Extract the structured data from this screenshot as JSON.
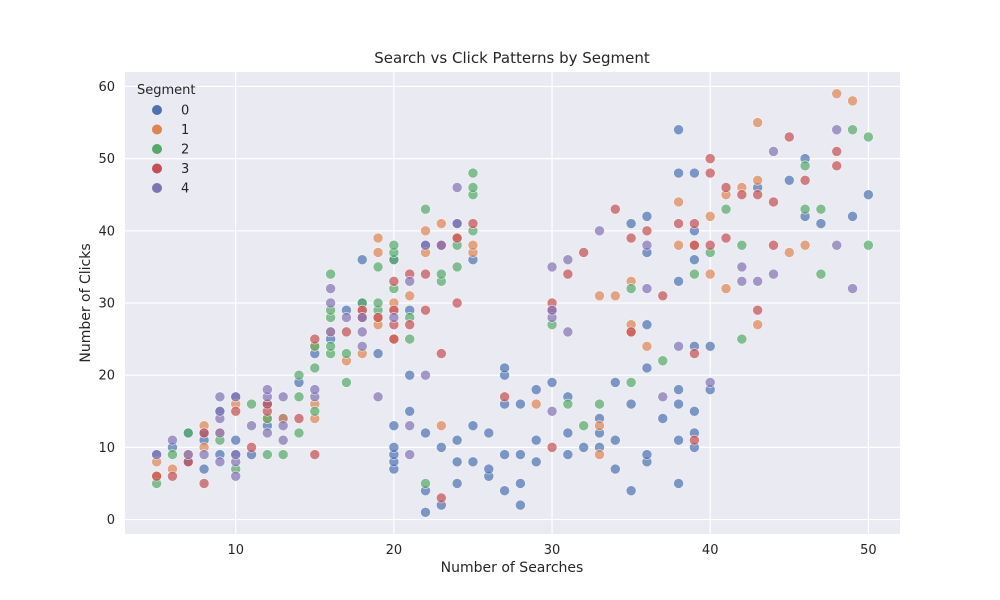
{
  "chart_data": {
    "type": "scatter",
    "title": "Search vs Click Patterns by Segment",
    "xlabel": "Number of Searches",
    "ylabel": "Number of Clicks",
    "xlim": [
      3,
      52
    ],
    "ylim": [
      -2,
      62
    ],
    "xticks": [
      10,
      20,
      30,
      40,
      50
    ],
    "yticks": [
      0,
      10,
      20,
      30,
      40,
      50,
      60
    ],
    "grid": true,
    "legend": {
      "title": "Segment",
      "position": "top-left"
    },
    "series": [
      {
        "name": "0",
        "color": "#4c72b0",
        "points": [
          [
            5,
            9
          ],
          [
            6,
            10
          ],
          [
            7,
            12
          ],
          [
            7,
            8
          ],
          [
            8,
            11
          ],
          [
            8,
            7
          ],
          [
            8,
            12
          ],
          [
            9,
            15
          ],
          [
            9,
            9
          ],
          [
            10,
            9
          ],
          [
            10,
            17
          ],
          [
            10,
            11
          ],
          [
            11,
            9
          ],
          [
            12,
            16
          ],
          [
            12,
            13
          ],
          [
            13,
            14
          ],
          [
            14,
            19
          ],
          [
            15,
            23
          ],
          [
            16,
            25
          ],
          [
            17,
            29
          ],
          [
            18,
            30
          ],
          [
            18,
            36
          ],
          [
            19,
            23
          ],
          [
            20,
            7
          ],
          [
            20,
            8
          ],
          [
            20,
            9
          ],
          [
            20,
            10
          ],
          [
            20,
            13
          ],
          [
            20,
            36
          ],
          [
            21,
            15
          ],
          [
            21,
            20
          ],
          [
            21,
            29
          ],
          [
            22,
            1
          ],
          [
            22,
            4
          ],
          [
            22,
            12
          ],
          [
            22,
            38
          ],
          [
            23,
            2
          ],
          [
            23,
            10
          ],
          [
            24,
            5
          ],
          [
            24,
            8
          ],
          [
            24,
            11
          ],
          [
            24,
            41
          ],
          [
            25,
            8
          ],
          [
            25,
            13
          ],
          [
            25,
            36
          ],
          [
            26,
            6
          ],
          [
            26,
            7
          ],
          [
            26,
            12
          ],
          [
            27,
            4
          ],
          [
            27,
            9
          ],
          [
            27,
            16
          ],
          [
            27,
            20
          ],
          [
            27,
            21
          ],
          [
            28,
            2
          ],
          [
            28,
            5
          ],
          [
            28,
            9
          ],
          [
            28,
            16
          ],
          [
            29,
            8
          ],
          [
            29,
            11
          ],
          [
            29,
            18
          ],
          [
            30,
            19
          ],
          [
            31,
            9
          ],
          [
            31,
            12
          ],
          [
            31,
            17
          ],
          [
            32,
            10
          ],
          [
            33,
            10
          ],
          [
            33,
            12
          ],
          [
            33,
            14
          ],
          [
            34,
            7
          ],
          [
            34,
            11
          ],
          [
            34,
            19
          ],
          [
            35,
            4
          ],
          [
            35,
            16
          ],
          [
            35,
            41
          ],
          [
            36,
            8
          ],
          [
            36,
            9
          ],
          [
            36,
            21
          ],
          [
            36,
            27
          ],
          [
            36,
            37
          ],
          [
            36,
            42
          ],
          [
            37,
            14
          ],
          [
            38,
            5
          ],
          [
            38,
            11
          ],
          [
            38,
            16
          ],
          [
            38,
            18
          ],
          [
            38,
            33
          ],
          [
            38,
            48
          ],
          [
            38,
            54
          ],
          [
            39,
            10
          ],
          [
            39,
            12
          ],
          [
            39,
            15
          ],
          [
            39,
            24
          ],
          [
            39,
            36
          ],
          [
            39,
            40
          ],
          [
            39,
            48
          ],
          [
            40,
            18
          ],
          [
            40,
            24
          ],
          [
            43,
            46
          ],
          [
            45,
            47
          ],
          [
            46,
            42
          ],
          [
            46,
            50
          ],
          [
            47,
            41
          ],
          [
            49,
            42
          ],
          [
            50,
            45
          ]
        ]
      },
      {
        "name": "1",
        "color": "#dd8452",
        "points": [
          [
            5,
            6
          ],
          [
            5,
            8
          ],
          [
            6,
            7
          ],
          [
            7,
            9
          ],
          [
            8,
            10
          ],
          [
            8,
            13
          ],
          [
            9,
            12
          ],
          [
            10,
            16
          ],
          [
            12,
            14
          ],
          [
            13,
            14
          ],
          [
            15,
            14
          ],
          [
            15,
            16
          ],
          [
            15,
            24
          ],
          [
            16,
            26
          ],
          [
            17,
            22
          ],
          [
            18,
            23
          ],
          [
            18,
            29
          ],
          [
            19,
            27
          ],
          [
            19,
            28
          ],
          [
            19,
            37
          ],
          [
            19,
            39
          ],
          [
            20,
            25
          ],
          [
            20,
            29
          ],
          [
            20,
            30
          ],
          [
            21,
            31
          ],
          [
            22,
            37
          ],
          [
            22,
            40
          ],
          [
            23,
            13
          ],
          [
            23,
            41
          ],
          [
            24,
            39
          ],
          [
            25,
            37
          ],
          [
            25,
            38
          ],
          [
            29,
            16
          ],
          [
            33,
            9
          ],
          [
            33,
            13
          ],
          [
            33,
            31
          ],
          [
            34,
            31
          ],
          [
            35,
            26
          ],
          [
            35,
            27
          ],
          [
            35,
            33
          ],
          [
            36,
            24
          ],
          [
            38,
            38
          ],
          [
            38,
            44
          ],
          [
            39,
            38
          ],
          [
            40,
            34
          ],
          [
            40,
            42
          ],
          [
            41,
            32
          ],
          [
            41,
            45
          ],
          [
            42,
            46
          ],
          [
            43,
            27
          ],
          [
            43,
            47
          ],
          [
            43,
            55
          ],
          [
            45,
            37
          ],
          [
            46,
            38
          ],
          [
            48,
            59
          ],
          [
            49,
            58
          ]
        ]
      },
      {
        "name": "2",
        "color": "#55a868",
        "points": [
          [
            5,
            5
          ],
          [
            6,
            9
          ],
          [
            7,
            12
          ],
          [
            9,
            11
          ],
          [
            10,
            7
          ],
          [
            11,
            16
          ],
          [
            12,
            9
          ],
          [
            12,
            14
          ],
          [
            13,
            9
          ],
          [
            14,
            12
          ],
          [
            14,
            17
          ],
          [
            14,
            20
          ],
          [
            15,
            15
          ],
          [
            15,
            21
          ],
          [
            15,
            24
          ],
          [
            16,
            23
          ],
          [
            16,
            24
          ],
          [
            16,
            28
          ],
          [
            16,
            29
          ],
          [
            16,
            34
          ],
          [
            17,
            19
          ],
          [
            17,
            23
          ],
          [
            18,
            30
          ],
          [
            19,
            29
          ],
          [
            19,
            30
          ],
          [
            19,
            35
          ],
          [
            20,
            32
          ],
          [
            20,
            36
          ],
          [
            20,
            37
          ],
          [
            20,
            38
          ],
          [
            21,
            25
          ],
          [
            21,
            28
          ],
          [
            22,
            5
          ],
          [
            22,
            43
          ],
          [
            23,
            33
          ],
          [
            23,
            34
          ],
          [
            24,
            35
          ],
          [
            24,
            38
          ],
          [
            25,
            40
          ],
          [
            25,
            45
          ],
          [
            25,
            46
          ],
          [
            25,
            48
          ],
          [
            30,
            27
          ],
          [
            31,
            16
          ],
          [
            32,
            13
          ],
          [
            33,
            16
          ],
          [
            35,
            19
          ],
          [
            35,
            32
          ],
          [
            37,
            22
          ],
          [
            39,
            34
          ],
          [
            40,
            37
          ],
          [
            41,
            43
          ],
          [
            42,
            25
          ],
          [
            42,
            38
          ],
          [
            46,
            43
          ],
          [
            46,
            49
          ],
          [
            47,
            34
          ],
          [
            47,
            43
          ],
          [
            49,
            54
          ],
          [
            50,
            38
          ],
          [
            50,
            53
          ]
        ]
      },
      {
        "name": "3",
        "color": "#c44e52",
        "points": [
          [
            5,
            6
          ],
          [
            6,
            6
          ],
          [
            7,
            8
          ],
          [
            8,
            5
          ],
          [
            8,
            12
          ],
          [
            10,
            15
          ],
          [
            11,
            10
          ],
          [
            12,
            15
          ],
          [
            12,
            16
          ],
          [
            14,
            14
          ],
          [
            15,
            9
          ],
          [
            15,
            25
          ],
          [
            17,
            26
          ],
          [
            18,
            28
          ],
          [
            18,
            29
          ],
          [
            19,
            28
          ],
          [
            20,
            25
          ],
          [
            20,
            27
          ],
          [
            20,
            29
          ],
          [
            20,
            33
          ],
          [
            21,
            27
          ],
          [
            21,
            34
          ],
          [
            22,
            29
          ],
          [
            22,
            34
          ],
          [
            23,
            3
          ],
          [
            23,
            23
          ],
          [
            23,
            38
          ],
          [
            24,
            30
          ],
          [
            24,
            39
          ],
          [
            25,
            41
          ],
          [
            27,
            17
          ],
          [
            30,
            10
          ],
          [
            30,
            29
          ],
          [
            30,
            30
          ],
          [
            31,
            34
          ],
          [
            32,
            37
          ],
          [
            34,
            43
          ],
          [
            35,
            26
          ],
          [
            35,
            39
          ],
          [
            36,
            40
          ],
          [
            37,
            31
          ],
          [
            38,
            41
          ],
          [
            39,
            11
          ],
          [
            39,
            23
          ],
          [
            39,
            38
          ],
          [
            39,
            41
          ],
          [
            40,
            38
          ],
          [
            40,
            48
          ],
          [
            40,
            50
          ],
          [
            41,
            39
          ],
          [
            41,
            46
          ],
          [
            42,
            45
          ],
          [
            43,
            29
          ],
          [
            43,
            45
          ],
          [
            44,
            38
          ],
          [
            44,
            44
          ],
          [
            45,
            53
          ],
          [
            46,
            47
          ],
          [
            48,
            49
          ],
          [
            48,
            51
          ]
        ]
      },
      {
        "name": "4",
        "color": "#8172b3",
        "points": [
          [
            5,
            9
          ],
          [
            6,
            11
          ],
          [
            7,
            9
          ],
          [
            8,
            9
          ],
          [
            9,
            8
          ],
          [
            9,
            12
          ],
          [
            9,
            14
          ],
          [
            9,
            15
          ],
          [
            9,
            17
          ],
          [
            10,
            6
          ],
          [
            10,
            8
          ],
          [
            10,
            9
          ],
          [
            10,
            17
          ],
          [
            11,
            13
          ],
          [
            12,
            12
          ],
          [
            12,
            17
          ],
          [
            12,
            18
          ],
          [
            13,
            11
          ],
          [
            13,
            13
          ],
          [
            13,
            17
          ],
          [
            15,
            17
          ],
          [
            15,
            18
          ],
          [
            16,
            26
          ],
          [
            16,
            30
          ],
          [
            16,
            32
          ],
          [
            17,
            28
          ],
          [
            18,
            24
          ],
          [
            18,
            26
          ],
          [
            18,
            28
          ],
          [
            19,
            17
          ],
          [
            20,
            28
          ],
          [
            21,
            9
          ],
          [
            21,
            13
          ],
          [
            21,
            33
          ],
          [
            22,
            20
          ],
          [
            22,
            38
          ],
          [
            23,
            38
          ],
          [
            24,
            41
          ],
          [
            24,
            46
          ],
          [
            30,
            15
          ],
          [
            30,
            28
          ],
          [
            30,
            29
          ],
          [
            30,
            35
          ],
          [
            31,
            26
          ],
          [
            31,
            36
          ],
          [
            33,
            40
          ],
          [
            36,
            32
          ],
          [
            36,
            38
          ],
          [
            37,
            17
          ],
          [
            38,
            24
          ],
          [
            40,
            19
          ],
          [
            42,
            33
          ],
          [
            42,
            35
          ],
          [
            43,
            33
          ],
          [
            44,
            34
          ],
          [
            44,
            51
          ],
          [
            48,
            38
          ],
          [
            48,
            54
          ],
          [
            49,
            32
          ]
        ]
      }
    ]
  }
}
